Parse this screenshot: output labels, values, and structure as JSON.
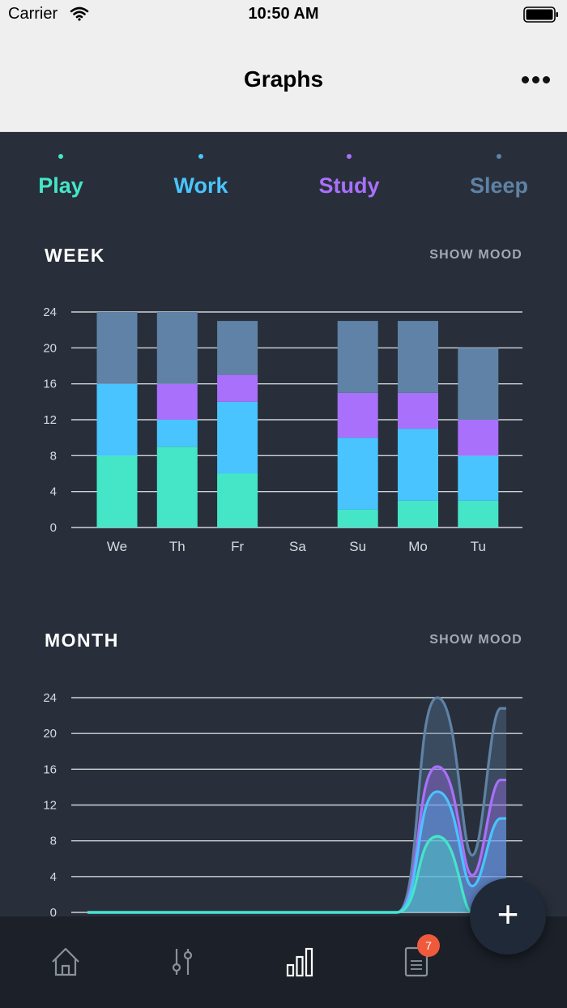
{
  "status": {
    "carrier": "Carrier",
    "time": "10:50 AM"
  },
  "header": {
    "title": "Graphs"
  },
  "legend": [
    {
      "label": "Play",
      "color": "#44e6c7"
    },
    {
      "label": "Work",
      "color": "#49c4ff"
    },
    {
      "label": "Study",
      "color": "#a970fb"
    },
    {
      "label": "Sleep",
      "color": "#5f82a6"
    }
  ],
  "week": {
    "title": "WEEK",
    "action": "SHOW MOOD"
  },
  "month": {
    "title": "MONTH",
    "action": "SHOW MOOD"
  },
  "tabs": {
    "docs_badge": "7"
  },
  "fab": {
    "label": "+"
  },
  "chart_data": [
    {
      "type": "bar",
      "stacked": true,
      "title": "WEEK",
      "categories": [
        "We",
        "Th",
        "Fr",
        "Sa",
        "Su",
        "Mo",
        "Tu"
      ],
      "series": [
        {
          "name": "Play",
          "color": "#44e6c7",
          "values": [
            8,
            9,
            6,
            0,
            2,
            3,
            3
          ]
        },
        {
          "name": "Work",
          "color": "#49c4ff",
          "values": [
            8,
            3,
            8,
            0,
            8,
            8,
            5
          ]
        },
        {
          "name": "Study",
          "color": "#a970fb",
          "values": [
            0,
            4,
            3,
            0,
            5,
            4,
            4
          ]
        },
        {
          "name": "Sleep",
          "color": "#5f82a6",
          "values": [
            8,
            8,
            6,
            0,
            8,
            8,
            8
          ]
        }
      ],
      "yticks": [
        "0",
        "4",
        "8",
        "12",
        "16",
        "20",
        "24"
      ],
      "ylim": [
        0,
        24
      ],
      "grid": true
    },
    {
      "type": "area",
      "stacked": true,
      "title": "MONTH",
      "yticks": [
        "0",
        "4",
        "8",
        "12",
        "16",
        "20",
        "24"
      ],
      "ylim": [
        0,
        24
      ],
      "grid": true,
      "series": [
        {
          "name": "Play",
          "color": "#44e6c7",
          "peaks": [
            8.5,
            0
          ]
        },
        {
          "name": "Work",
          "color": "#49c4ff",
          "peaks": [
            13.5,
            10.5
          ]
        },
        {
          "name": "Study",
          "color": "#a970fb",
          "peaks": [
            16.3,
            14.8
          ]
        },
        {
          "name": "Sleep",
          "color": "#5f82a6",
          "peaks": [
            24,
            22.8
          ]
        }
      ]
    }
  ]
}
